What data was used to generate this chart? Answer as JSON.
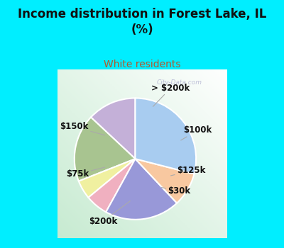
{
  "title": "Income distribution in Forest Lake, IL\n(%)",
  "subtitle": "White residents",
  "title_color": "#111111",
  "subtitle_color": "#b05a2f",
  "bg_cyan": "#00eeff",
  "chart_bg_colors": [
    "#c8e8d0",
    "#ffffff"
  ],
  "labels": [
    "> $200k",
    "$100k",
    "$125k",
    "$30k",
    "$200k",
    "$75k",
    "$150k"
  ],
  "sizes": [
    13,
    18,
    5,
    6,
    20,
    9,
    29
  ],
  "colors": [
    "#c4b0d8",
    "#a8c490",
    "#f0f0a0",
    "#f0b0c0",
    "#9898d8",
    "#f8c8a0",
    "#a8ccf0"
  ],
  "startangle": 90,
  "watermark": "City-Data.com"
}
